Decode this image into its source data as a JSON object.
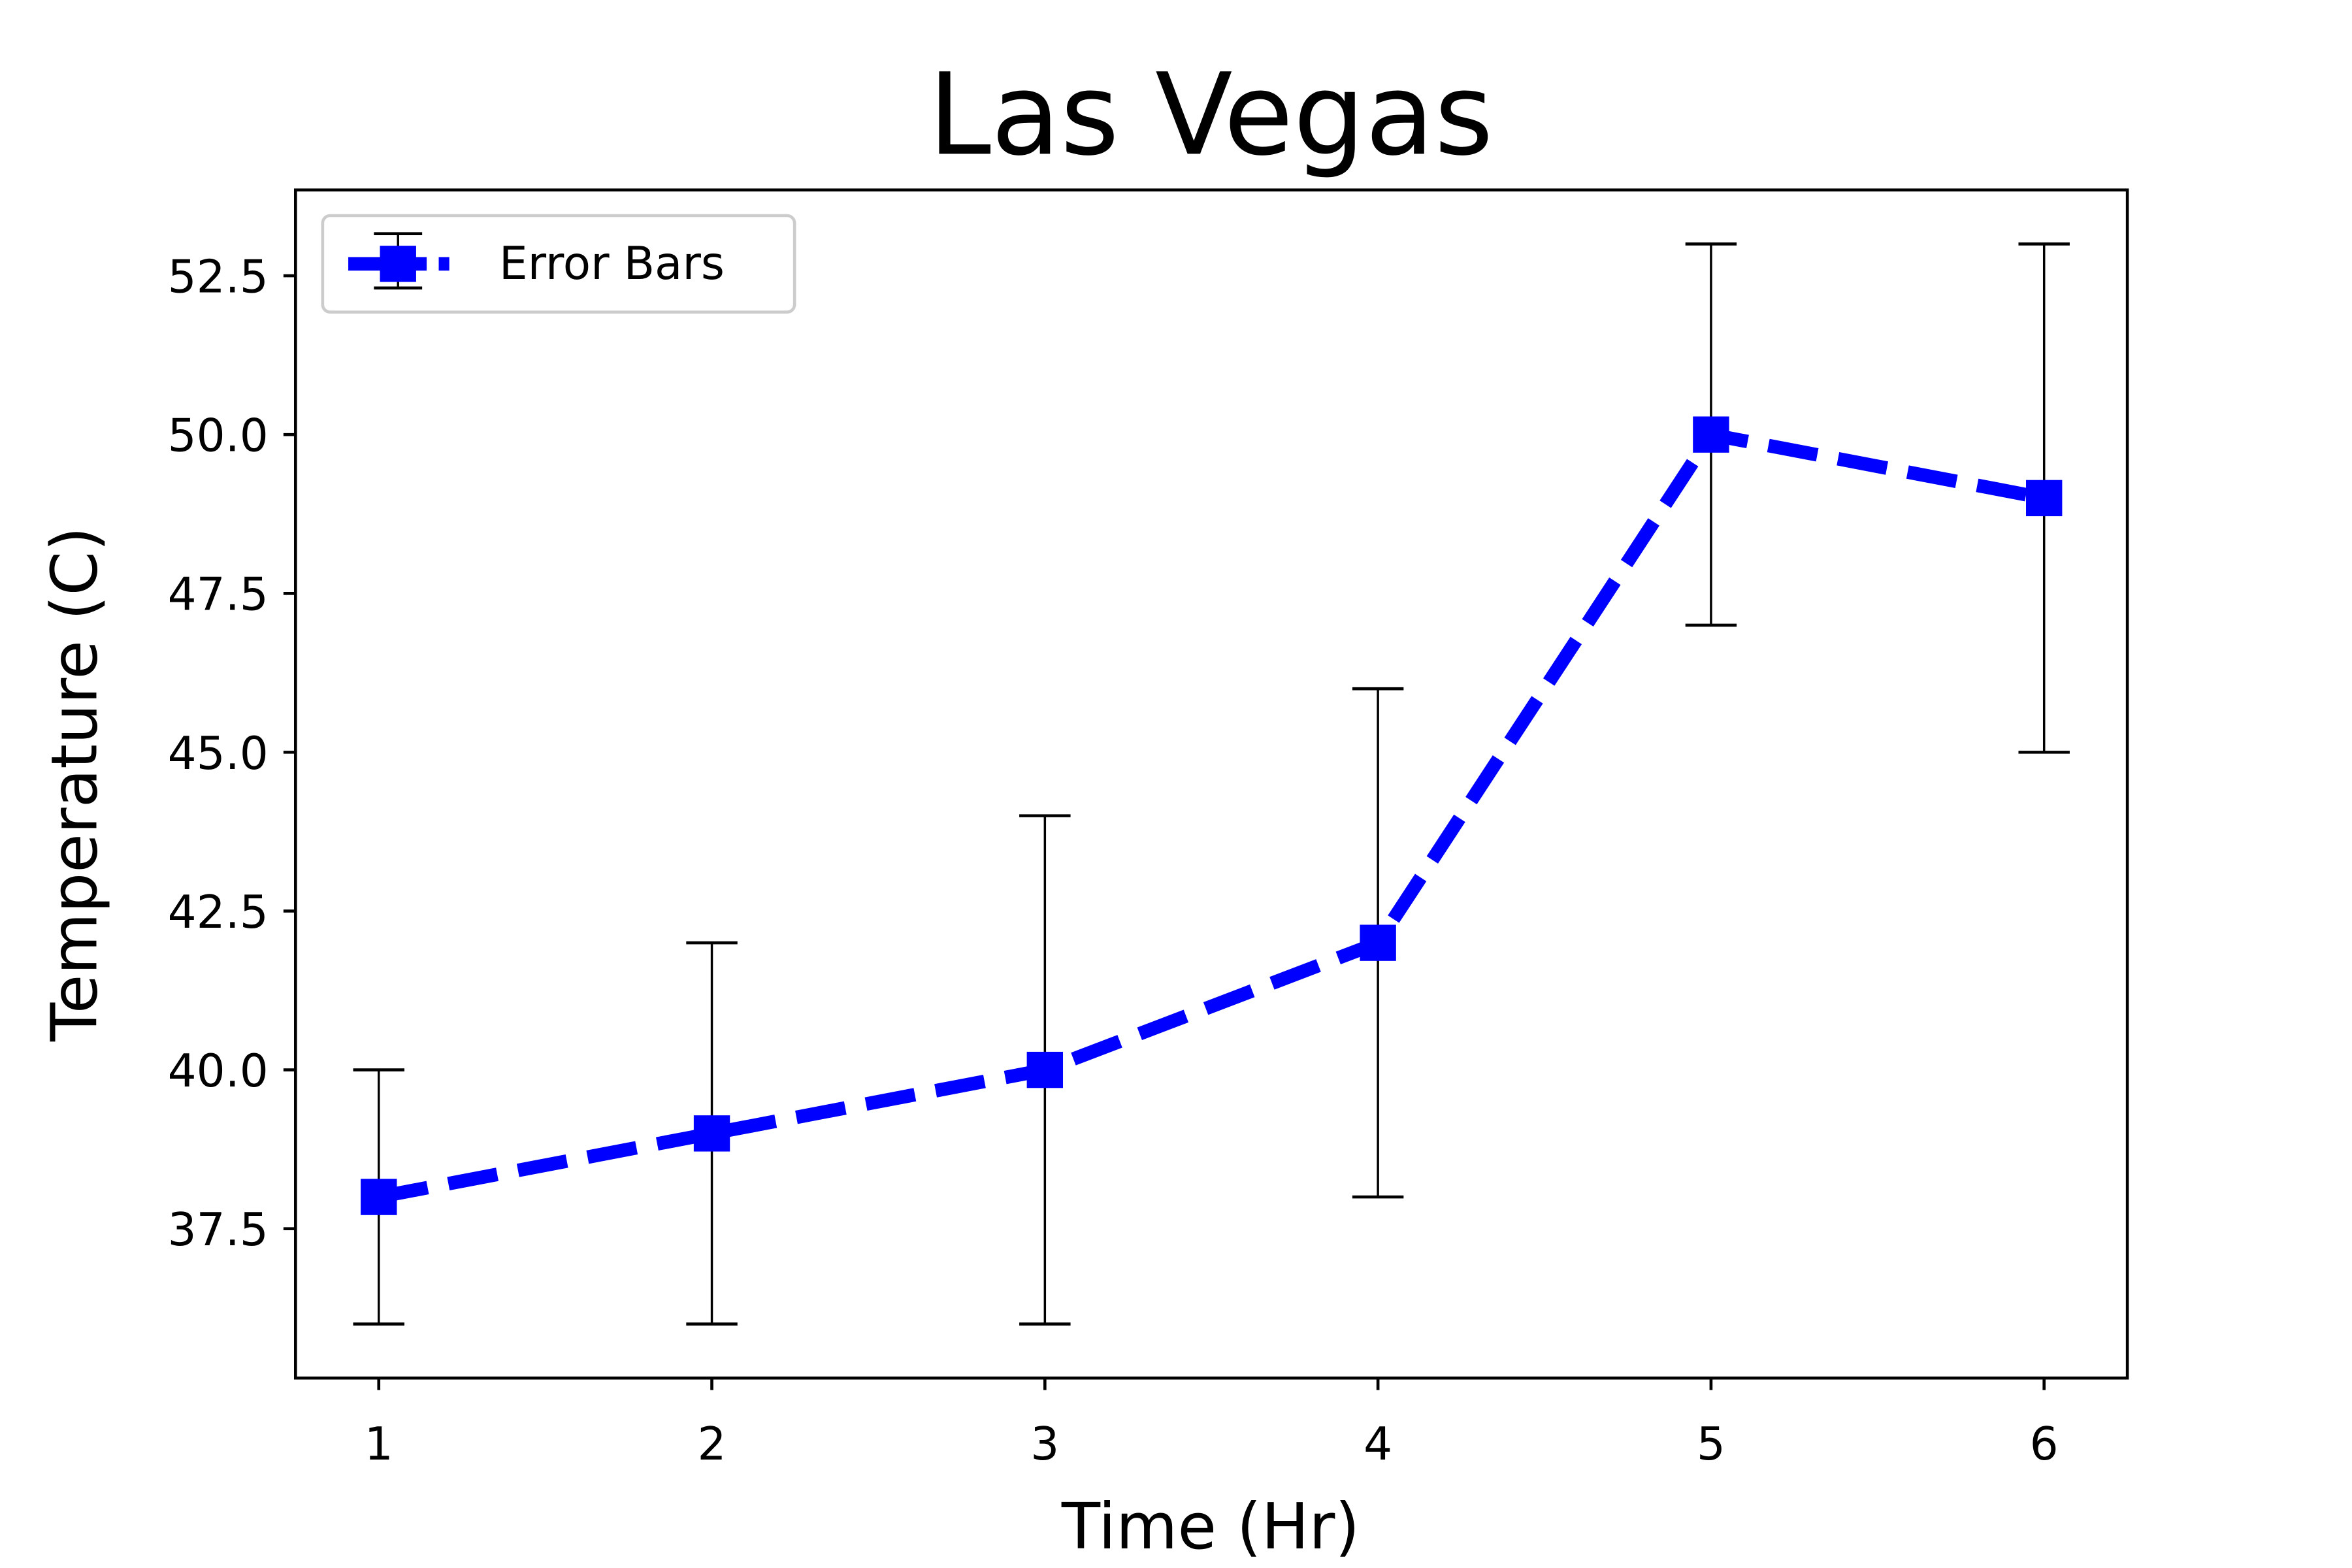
{
  "chart_data": {
    "type": "line",
    "title": "Las Vegas",
    "xlabel": "Time (Hr)",
    "ylabel": "Temperature (C)",
    "x": [
      1,
      2,
      3,
      4,
      5,
      6
    ],
    "x_ticks": [
      "1",
      "2",
      "3",
      "4",
      "5",
      "6"
    ],
    "y_ticks": [
      "37.5",
      "40.0",
      "42.5",
      "45.0",
      "47.5",
      "50.0",
      "52.5"
    ],
    "xlim": [
      0.75,
      6.25
    ],
    "ylim": [
      35.15,
      53.85
    ],
    "grid": false,
    "legend_position": "upper-left",
    "series": [
      {
        "name": "Error Bars",
        "color": "#0000ff",
        "line_style": "dashed",
        "marker": "square",
        "values": [
          38,
          39,
          40,
          42,
          50,
          49
        ],
        "error": [
          2,
          3,
          4,
          4,
          3,
          4
        ]
      }
    ]
  }
}
